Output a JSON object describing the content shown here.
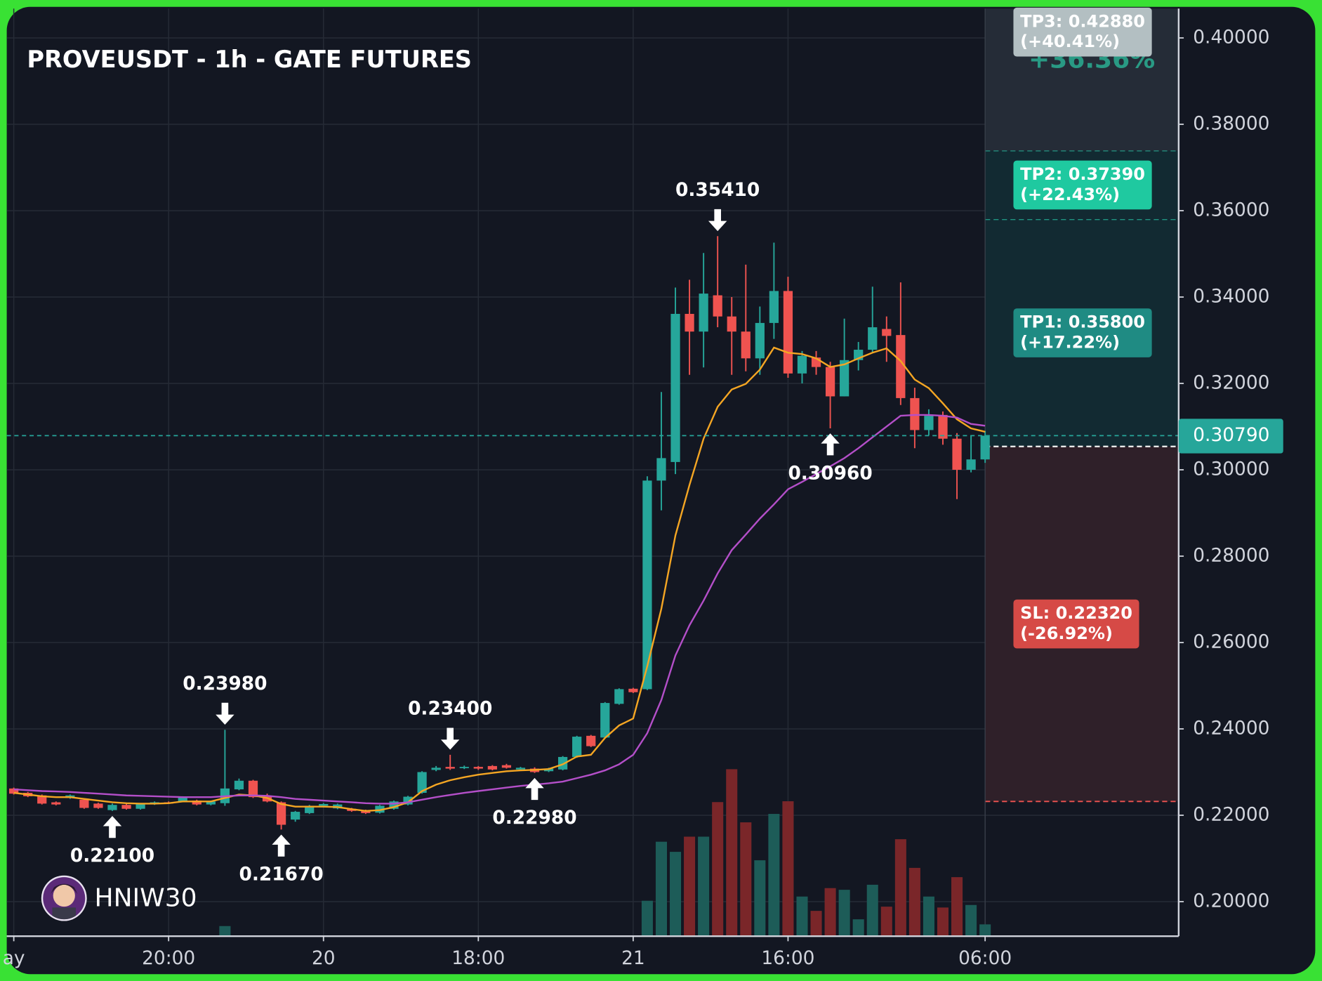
{
  "chart_data": {
    "type": "candlestick",
    "title": "PROVEUSDT - 1h - GATE FUTURES",
    "watermark": "HNIW30",
    "up_color": "#26a69a",
    "down_color": "#ef5350",
    "volume_up_color": "#1d5c58",
    "volume_down_color": "#7a2629",
    "grid": true,
    "xlim": [
      -0.5,
      82.75
    ],
    "xticks": [
      {
        "value": 0,
        "label": "ay"
      },
      {
        "value": 11,
        "label": "20:00"
      },
      {
        "value": 22,
        "label": "20"
      },
      {
        "value": 33,
        "label": "18:00"
      },
      {
        "value": 44,
        "label": "21"
      },
      {
        "value": 55,
        "label": "16:00"
      },
      {
        "value": 69,
        "label": "06:00"
      }
    ],
    "ylim": [
      0.192,
      0.4068
    ],
    "yticks": [
      {
        "value": 0.2,
        "label": "0.20000"
      },
      {
        "value": 0.22,
        "label": "0.22000"
      },
      {
        "value": 0.24,
        "label": "0.24000"
      },
      {
        "value": 0.26,
        "label": "0.26000"
      },
      {
        "value": 0.28,
        "label": "0.28000"
      },
      {
        "value": 0.3,
        "label": "0.30000"
      },
      {
        "value": 0.32,
        "label": "0.32000"
      },
      {
        "value": 0.34,
        "label": "0.34000"
      },
      {
        "value": 0.36,
        "label": "0.36000"
      },
      {
        "value": 0.38,
        "label": "0.38000"
      },
      {
        "value": 0.4,
        "label": "0.40000"
      }
    ],
    "open": [
      0.2262,
      0.2252,
      0.2246,
      0.223,
      0.224,
      0.2236,
      0.2227,
      0.2212,
      0.2224,
      0.2215,
      0.2226,
      0.223,
      0.2232,
      0.2234,
      0.2225,
      0.2228,
      0.226,
      0.228,
      0.2244,
      0.223,
      0.219,
      0.2205,
      0.2222,
      0.2216,
      0.2215,
      0.2211,
      0.2206,
      0.2215,
      0.2225,
      0.2252,
      0.2305,
      0.2312,
      0.231,
      0.2312,
      0.2314,
      0.2316,
      0.2306,
      0.2308,
      0.2302,
      0.2306,
      0.2335,
      0.2384,
      0.238,
      0.2458,
      0.2493,
      0.2492,
      0.2975,
      0.3018,
      0.3361,
      0.332,
      0.3404,
      0.3355,
      0.332,
      0.3258,
      0.334,
      0.3414,
      0.3223,
      0.326,
      0.3238,
      0.317,
      0.3254,
      0.3278,
      0.3326,
      0.3312,
      0.3166,
      0.3092,
      0.3127,
      0.3072,
      0.3,
      0.3024
    ],
    "high": [
      0.2264,
      0.2254,
      0.2248,
      0.2232,
      0.2248,
      0.2238,
      0.2229,
      0.2227,
      0.2226,
      0.2228,
      0.2232,
      0.2232,
      0.2244,
      0.2236,
      0.2234,
      0.2398,
      0.2285,
      0.2282,
      0.225,
      0.2232,
      0.221,
      0.2224,
      0.2228,
      0.2227,
      0.2217,
      0.2213,
      0.2224,
      0.2234,
      0.2245,
      0.2302,
      0.2314,
      0.234,
      0.2315,
      0.2314,
      0.2316,
      0.2319,
      0.2312,
      0.2311,
      0.231,
      0.2337,
      0.2384,
      0.2386,
      0.2462,
      0.2494,
      0.2495,
      0.2985,
      0.318,
      0.3422,
      0.344,
      0.3502,
      0.3541,
      0.34,
      0.3475,
      0.3378,
      0.3526,
      0.3447,
      0.3275,
      0.3275,
      0.325,
      0.335,
      0.3296,
      0.3424,
      0.3355,
      0.3434,
      0.319,
      0.314,
      0.3135,
      0.3085,
      0.308,
      0.309
    ],
    "low": [
      0.2248,
      0.2242,
      0.2225,
      0.2223,
      0.2238,
      0.2215,
      0.2215,
      0.221,
      0.2213,
      0.2213,
      0.2224,
      0.2226,
      0.223,
      0.2223,
      0.2223,
      0.2222,
      0.2258,
      0.224,
      0.223,
      0.2167,
      0.2185,
      0.2203,
      0.2218,
      0.2214,
      0.2208,
      0.2203,
      0.2204,
      0.2213,
      0.2223,
      0.225,
      0.2302,
      0.2305,
      0.2307,
      0.2305,
      0.2304,
      0.2308,
      0.2303,
      0.2298,
      0.23,
      0.2304,
      0.2333,
      0.2358,
      0.2378,
      0.2456,
      0.2483,
      0.249,
      0.2906,
      0.299,
      0.322,
      0.3237,
      0.333,
      0.322,
      0.3228,
      0.322,
      0.3303,
      0.3213,
      0.32,
      0.322,
      0.3096,
      0.317,
      0.323,
      0.327,
      0.325,
      0.315,
      0.305,
      0.308,
      0.3058,
      0.2932,
      0.2994,
      0.3016
    ],
    "close": [
      0.225,
      0.2244,
      0.2227,
      0.2225,
      0.2246,
      0.2217,
      0.2217,
      0.2224,
      0.2215,
      0.2226,
      0.223,
      0.2228,
      0.2242,
      0.2225,
      0.2232,
      0.2262,
      0.228,
      0.2242,
      0.2232,
      0.2178,
      0.2208,
      0.2222,
      0.2226,
      0.2225,
      0.221,
      0.2205,
      0.2222,
      0.2232,
      0.2243,
      0.23,
      0.231,
      0.2308,
      0.2312,
      0.2308,
      0.2306,
      0.231,
      0.231,
      0.23,
      0.2308,
      0.2335,
      0.2382,
      0.236,
      0.246,
      0.2492,
      0.2485,
      0.2975,
      0.3027,
      0.3361,
      0.332,
      0.3408,
      0.3355,
      0.332,
      0.3258,
      0.334,
      0.3414,
      0.3223,
      0.3264,
      0.3238,
      0.317,
      0.3254,
      0.3278,
      0.333,
      0.331,
      0.3166,
      0.3092,
      0.3125,
      0.3072,
      0.3,
      0.3024,
      0.3079
    ],
    "volume_ylim": [
      0,
      200
    ],
    "volume": [
      null,
      null,
      null,
      null,
      null,
      null,
      null,
      null,
      null,
      null,
      null,
      null,
      null,
      null,
      null,
      12,
      null,
      null,
      null,
      null,
      null,
      null,
      null,
      null,
      null,
      null,
      null,
      null,
      null,
      null,
      null,
      null,
      null,
      null,
      null,
      null,
      null,
      null,
      null,
      null,
      null,
      null,
      null,
      null,
      null,
      42,
      112,
      100,
      118,
      118,
      159,
      198,
      135,
      90,
      145,
      160,
      47,
      30,
      57,
      55,
      20,
      61,
      35,
      115,
      81,
      47,
      34,
      70,
      37,
      14
    ],
    "lines": [
      {
        "color": "#f5a623",
        "values": [
          0.2252,
          0.2248,
          0.2244,
          0.2242,
          0.2242,
          0.2238,
          0.2234,
          0.223,
          0.2228,
          0.2227,
          0.2227,
          0.2228,
          0.2232,
          0.2232,
          0.2232,
          0.224,
          0.2248,
          0.2246,
          0.224,
          0.2226,
          0.222,
          0.222,
          0.222,
          0.2219,
          0.2214,
          0.221,
          0.2212,
          0.2219,
          0.223,
          0.2256,
          0.2271,
          0.2281,
          0.2288,
          0.2294,
          0.2298,
          0.2302,
          0.2304,
          0.2305,
          0.2307,
          0.2318,
          0.2336,
          0.234,
          0.2379,
          0.2408,
          0.2424,
          0.2545,
          0.2678,
          0.2848,
          0.2965,
          0.3072,
          0.3146,
          0.3186,
          0.3199,
          0.3232,
          0.3283,
          0.3271,
          0.3268,
          0.3258,
          0.3238,
          0.3244,
          0.3258,
          0.3271,
          0.3281,
          0.3252,
          0.3209,
          0.3189,
          0.3154,
          0.3117,
          0.3096,
          0.3088
        ]
      },
      {
        "color": "#b44fc9",
        "values": [
          0.226,
          0.2258,
          0.2256,
          0.2255,
          0.2254,
          0.2252,
          0.225,
          0.2248,
          0.2246,
          0.2245,
          0.2244,
          0.2243,
          0.2242,
          0.2242,
          0.2242,
          0.2244,
          0.2246,
          0.2246,
          0.2245,
          0.2242,
          0.2238,
          0.2236,
          0.2234,
          0.2232,
          0.223,
          0.2228,
          0.2227,
          0.2227,
          0.223,
          0.2236,
          0.2242,
          0.2247,
          0.2252,
          0.2256,
          0.226,
          0.2264,
          0.2268,
          0.2271,
          0.2274,
          0.2278,
          0.2286,
          0.2294,
          0.2304,
          0.2318,
          0.234,
          0.239,
          0.2467,
          0.257,
          0.264,
          0.2697,
          0.276,
          0.2814,
          0.285,
          0.2887,
          0.292,
          0.2955,
          0.2972,
          0.299,
          0.3008,
          0.3027,
          0.305,
          0.3075,
          0.31,
          0.3125,
          0.3127,
          0.3127,
          0.3125,
          0.3121,
          0.3106,
          0.3102
        ]
      }
    ],
    "annotations": [
      {
        "index": 7,
        "value": 0.221,
        "label": "0.22100",
        "side": "low"
      },
      {
        "index": 15,
        "value": 0.2398,
        "label": "0.23980",
        "side": "high"
      },
      {
        "index": 19,
        "value": 0.2167,
        "label": "0.21670",
        "side": "low"
      },
      {
        "index": 31,
        "value": 0.234,
        "label": "0.23400",
        "side": "high"
      },
      {
        "index": 37,
        "value": 0.2298,
        "label": "0.22980",
        "side": "low"
      },
      {
        "index": 50,
        "value": 0.3541,
        "label": "0.35410",
        "side": "high"
      },
      {
        "index": 58,
        "value": 0.3096,
        "label": "0.30960",
        "side": "low"
      }
    ],
    "last_price": {
      "value": 0.3079,
      "label": "0.30790",
      "color": "#26a69a"
    },
    "position": {
      "start": 69,
      "entry": 0.3054,
      "entry_color": "#e8e8e8",
      "pnl_label": "+36.36%",
      "pnl_color": "#2bbf9e",
      "targets": [
        {
          "price": 0.358,
          "label": "TP1: 0.35800",
          "change": "(+17.22%)",
          "color": "#1f8b83",
          "zone": "#122a32",
          "line_color": "#26c6a6"
        },
        {
          "price": 0.3739,
          "label": "TP2: 0.37390",
          "change": "(+22.43%)",
          "color": "#1fc9a0",
          "zone": "#122a32",
          "line_color": "#26c6a6"
        },
        {
          "price": 0.4288,
          "label": "TP3: 0.42880",
          "change": "(+40.41%)",
          "color": "#b3bfc2",
          "zone": "#252c37",
          "line_color": "#26c6a6"
        }
      ],
      "stop": {
        "price": 0.2232,
        "label": "SL: 0.22320",
        "change": "(-26.92%)",
        "color": "#d64a46",
        "zone": "#2f2029",
        "line_color": "#ef5350"
      }
    }
  }
}
